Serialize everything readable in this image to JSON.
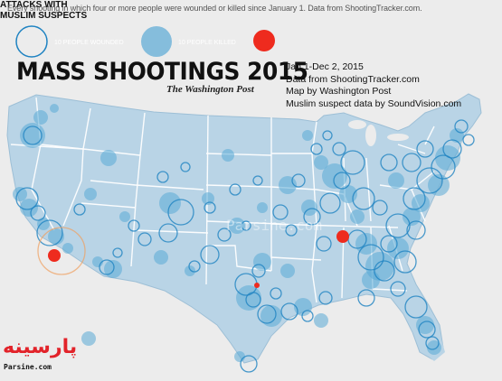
{
  "header": {
    "note": "Every shooting in which four or more people were wounded or killed since January 1. Data from ShootingTracker.com."
  },
  "legend": {
    "wounded_label": "10 PEOPLE WOUNDED",
    "killed_label": "10 PEOPLE KILLED",
    "muslim_label": "ATTACKS WITH\nMUSLIM SUSPECTS"
  },
  "title": "MASS SHOOTINGS 2015",
  "byline": "The Washington Post",
  "info": {
    "dates": "Jan 1-Dec 2, 2015",
    "source": "Data from ShootingTracker.com",
    "map_credit": "Map by Washington Post",
    "muslim_credit": "Muslim suspect data by SoundVision.com"
  },
  "watermark": "Parsine.com",
  "logo": {
    "text": "پارسینه",
    "site": "Parsine.com"
  },
  "colors": {
    "land": "#b9d4e6",
    "state_line": "#ffffff",
    "water": "#ececec",
    "wounded": "#1f83c2",
    "killed": "#5aa9d6",
    "muslim": "#ee2b1e"
  },
  "markers": {
    "muslim_attacks": [
      {
        "location": "San Bernardino, CA"
      },
      {
        "location": "Chattanooga, TN"
      },
      {
        "location": "Garland, TX"
      }
    ]
  }
}
